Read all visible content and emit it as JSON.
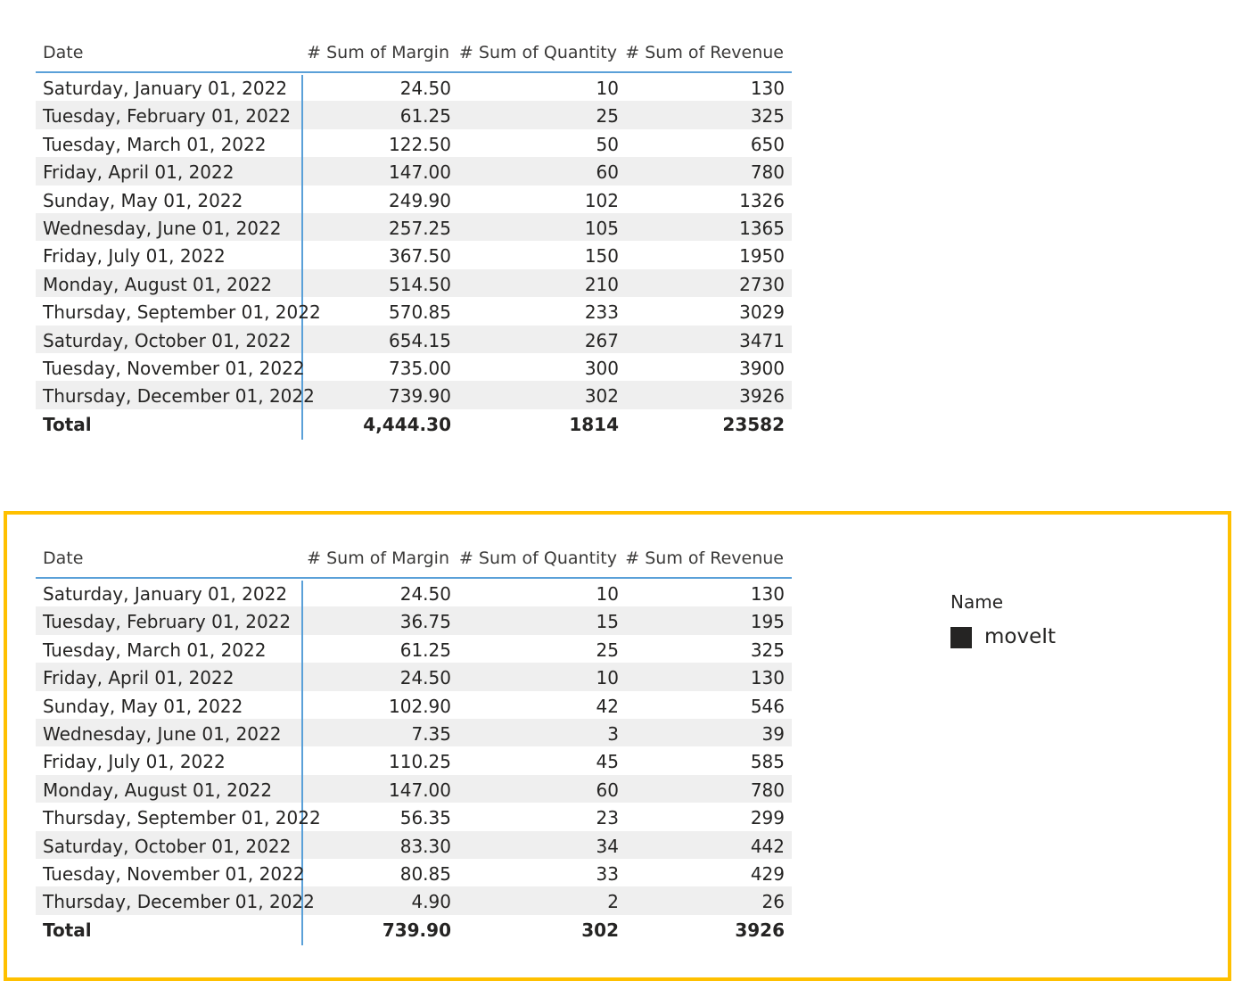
{
  "columns": [
    "Date",
    "# Sum of Margin",
    "# Sum of Quantity",
    "# Sum of Revenue"
  ],
  "table_top": {
    "rows": [
      {
        "date": "Saturday, January 01, 2022",
        "margin": "24.50",
        "quantity": "10",
        "revenue": "130"
      },
      {
        "date": "Tuesday, February 01, 2022",
        "margin": "61.25",
        "quantity": "25",
        "revenue": "325"
      },
      {
        "date": "Tuesday, March 01, 2022",
        "margin": "122.50",
        "quantity": "50",
        "revenue": "650"
      },
      {
        "date": "Friday, April 01, 2022",
        "margin": "147.00",
        "quantity": "60",
        "revenue": "780"
      },
      {
        "date": "Sunday, May 01, 2022",
        "margin": "249.90",
        "quantity": "102",
        "revenue": "1326"
      },
      {
        "date": "Wednesday, June 01, 2022",
        "margin": "257.25",
        "quantity": "105",
        "revenue": "1365"
      },
      {
        "date": "Friday, July 01, 2022",
        "margin": "367.50",
        "quantity": "150",
        "revenue": "1950"
      },
      {
        "date": "Monday, August 01, 2022",
        "margin": "514.50",
        "quantity": "210",
        "revenue": "2730"
      },
      {
        "date": "Thursday, September 01, 2022",
        "margin": "570.85",
        "quantity": "233",
        "revenue": "3029"
      },
      {
        "date": "Saturday, October 01, 2022",
        "margin": "654.15",
        "quantity": "267",
        "revenue": "3471"
      },
      {
        "date": "Tuesday, November 01, 2022",
        "margin": "735.00",
        "quantity": "300",
        "revenue": "3900"
      },
      {
        "date": "Thursday, December 01, 2022",
        "margin": "739.90",
        "quantity": "302",
        "revenue": "3926"
      }
    ],
    "total": {
      "date": "Total",
      "margin": "4,444.30",
      "quantity": "1814",
      "revenue": "23582"
    }
  },
  "table_bottom": {
    "rows": [
      {
        "date": "Saturday, January 01, 2022",
        "margin": "24.50",
        "quantity": "10",
        "revenue": "130"
      },
      {
        "date": "Tuesday, February 01, 2022",
        "margin": "36.75",
        "quantity": "15",
        "revenue": "195"
      },
      {
        "date": "Tuesday, March 01, 2022",
        "margin": "61.25",
        "quantity": "25",
        "revenue": "325"
      },
      {
        "date": "Friday, April 01, 2022",
        "margin": "24.50",
        "quantity": "10",
        "revenue": "130"
      },
      {
        "date": "Sunday, May 01, 2022",
        "margin": "102.90",
        "quantity": "42",
        "revenue": "546"
      },
      {
        "date": "Wednesday, June 01, 2022",
        "margin": "7.35",
        "quantity": "3",
        "revenue": "39"
      },
      {
        "date": "Friday, July 01, 2022",
        "margin": "110.25",
        "quantity": "45",
        "revenue": "585"
      },
      {
        "date": "Monday, August 01, 2022",
        "margin": "147.00",
        "quantity": "60",
        "revenue": "780"
      },
      {
        "date": "Thursday, September 01, 2022",
        "margin": "56.35",
        "quantity": "23",
        "revenue": "299"
      },
      {
        "date": "Saturday, October 01, 2022",
        "margin": "83.30",
        "quantity": "34",
        "revenue": "442"
      },
      {
        "date": "Tuesday, November 01, 2022",
        "margin": "80.85",
        "quantity": "33",
        "revenue": "429"
      },
      {
        "date": "Thursday, December 01, 2022",
        "margin": "4.90",
        "quantity": "2",
        "revenue": "26"
      }
    ],
    "total": {
      "date": "Total",
      "margin": "739.90",
      "quantity": "302",
      "revenue": "3926"
    }
  },
  "legend": {
    "title": "Name",
    "items": [
      {
        "label": "moveIt",
        "color": "#252423"
      }
    ]
  },
  "colors": {
    "highlight_border": "#ffc000",
    "header_rule": "#5aa0d8",
    "row_band": "#efefef"
  }
}
